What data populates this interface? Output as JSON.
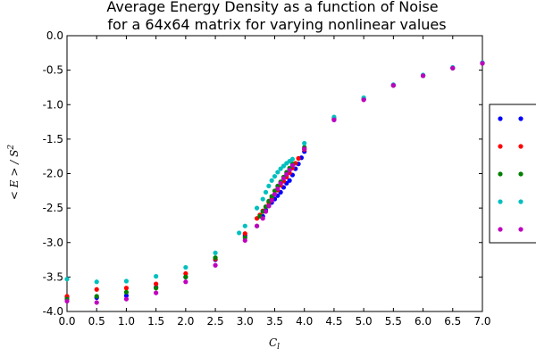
{
  "chart_data": {
    "type": "scatter",
    "title": "Average Energy Density as a function of Noise",
    "subtitle": "for a 64x64 matrix for varying nonlinear values",
    "xlabel": "C_l",
    "ylabel": "<E>/S^2",
    "xlim": [
      0.0,
      7.0
    ],
    "ylim": [
      -4.0,
      0.0
    ],
    "x_ticks": [
      "0.0",
      "0.5",
      "1.0",
      "1.5",
      "2.0",
      "2.5",
      "3.0",
      "3.5",
      "4.0",
      "4.5",
      "5.0",
      "5.5",
      "6.0",
      "6.5",
      "7.0"
    ],
    "y_ticks": [
      "0.0",
      "-0.5",
      "-1.0",
      "-1.5",
      "-2.0",
      "-2.5",
      "-3.0",
      "-3.5",
      "-4.0"
    ],
    "grid": false,
    "legend": {
      "placement": "right, outside plot area",
      "labels_visible": false
    },
    "series": [
      {
        "color": "#0000ff",
        "x": [
          0.0,
          0.5,
          1.0,
          1.5,
          2.0,
          2.5,
          3.0,
          3.3,
          3.35,
          3.4,
          3.45,
          3.5,
          3.55,
          3.6,
          3.65,
          3.7,
          3.75,
          3.8,
          3.85,
          3.9,
          3.95,
          4.0,
          4.5,
          5.0,
          5.5,
          6.0,
          6.5,
          7.0
        ],
        "y": [
          -3.79,
          -3.8,
          -3.77,
          -3.65,
          -3.5,
          -3.25,
          -2.9,
          -2.62,
          -2.53,
          -2.47,
          -2.42,
          -2.37,
          -2.32,
          -2.27,
          -2.2,
          -2.14,
          -2.1,
          -2.02,
          -1.93,
          -1.86,
          -1.77,
          -1.68,
          -1.22,
          -0.92,
          -0.72,
          -0.58,
          -0.47,
          -0.4
        ]
      },
      {
        "color": "#ff0000",
        "x": [
          0.0,
          0.5,
          1.0,
          1.5,
          2.0,
          2.5,
          3.0,
          3.2,
          3.25,
          3.3,
          3.35,
          3.4,
          3.45,
          3.5,
          3.55,
          3.6,
          3.65,
          3.7,
          3.75,
          3.8,
          3.85,
          3.9,
          4.0,
          4.5,
          5.0,
          5.5,
          6.0,
          6.5,
          7.0
        ],
        "y": [
          -3.78,
          -3.68,
          -3.66,
          -3.6,
          -3.45,
          -3.24,
          -2.87,
          -2.65,
          -2.6,
          -2.54,
          -2.48,
          -2.42,
          -2.36,
          -2.3,
          -2.24,
          -2.17,
          -2.11,
          -2.05,
          -1.99,
          -1.92,
          -1.85,
          -1.78,
          -1.65,
          -1.2,
          -0.92,
          -0.72,
          -0.58,
          -0.47,
          -0.4
        ]
      },
      {
        "color": "#007f00",
        "x": [
          0.0,
          0.5,
          1.0,
          1.5,
          2.0,
          2.5,
          3.0,
          3.2,
          3.25,
          3.3,
          3.35,
          3.4,
          3.45,
          3.5,
          3.55,
          3.6,
          3.65,
          3.7,
          3.75,
          3.8,
          4.0,
          4.5,
          5.0,
          5.5,
          6.0,
          6.5,
          7.0
        ],
        "y": [
          -3.82,
          -3.78,
          -3.72,
          -3.66,
          -3.5,
          -3.22,
          -2.93,
          -2.76,
          -2.62,
          -2.55,
          -2.48,
          -2.4,
          -2.33,
          -2.25,
          -2.18,
          -2.12,
          -2.05,
          -1.98,
          -1.92,
          -1.86,
          -1.62,
          -1.21,
          -0.92,
          -0.72,
          -0.58,
          -0.47,
          -0.4
        ]
      },
      {
        "color": "#00bfbf",
        "x": [
          0.0,
          0.5,
          1.0,
          1.5,
          2.0,
          2.5,
          2.9,
          3.0,
          3.2,
          3.3,
          3.35,
          3.4,
          3.45,
          3.5,
          3.55,
          3.6,
          3.65,
          3.7,
          3.75,
          3.8,
          4.0,
          4.5,
          5.0,
          5.5,
          6.0,
          6.5,
          7.0
        ],
        "y": [
          -3.53,
          -3.57,
          -3.56,
          -3.49,
          -3.36,
          -3.15,
          -2.86,
          -2.76,
          -2.5,
          -2.37,
          -2.27,
          -2.18,
          -2.1,
          -2.04,
          -1.98,
          -1.93,
          -1.89,
          -1.85,
          -1.82,
          -1.79,
          -1.56,
          -1.18,
          -0.9,
          -0.71,
          -0.57,
          -0.46,
          -0.39
        ]
      },
      {
        "color": "#bf00bf",
        "x": [
          0.0,
          0.5,
          1.0,
          1.5,
          2.0,
          2.5,
          3.0,
          3.2,
          3.3,
          3.35,
          3.4,
          3.45,
          3.5,
          3.55,
          3.6,
          3.65,
          3.7,
          3.75,
          3.8,
          4.0,
          4.5,
          5.0,
          5.5,
          6.0,
          6.5,
          7.0
        ],
        "y": [
          -3.85,
          -3.87,
          -3.82,
          -3.73,
          -3.57,
          -3.33,
          -2.97,
          -2.76,
          -2.65,
          -2.55,
          -2.47,
          -2.39,
          -2.3,
          -2.22,
          -2.14,
          -2.07,
          -2.01,
          -1.95,
          -1.88,
          -1.64,
          -1.22,
          -0.93,
          -0.72,
          -0.58,
          -0.47,
          -0.4
        ]
      }
    ]
  }
}
